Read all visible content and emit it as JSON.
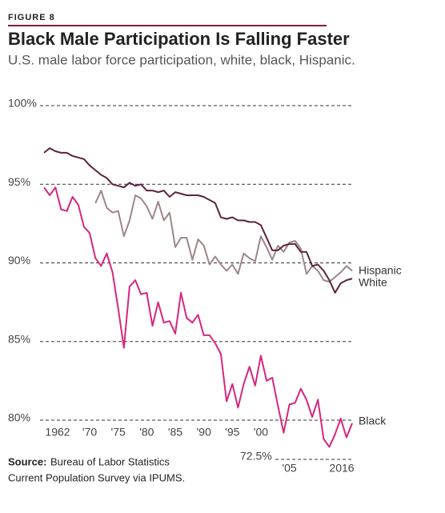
{
  "chart_data": {
    "type": "line",
    "label": "FIGURE 8",
    "title": "Black Male Participation Is Falling Faster",
    "subtitle": "U.S. male labor force participation, white, black, Hispanic.",
    "source_label": "Source:",
    "source": [
      "Bureau of Labor Statistics",
      "Current Population Survey via IPUMS."
    ],
    "axis_break_label": "72.5%",
    "x": [
      1962,
      1963,
      1964,
      1965,
      1966,
      1967,
      1968,
      1969,
      1970,
      1971,
      1972,
      1973,
      1974,
      1975,
      1976,
      1977,
      1978,
      1979,
      1980,
      1981,
      1982,
      1983,
      1984,
      1985,
      1986,
      1987,
      1988,
      1989,
      1990,
      1991,
      1992,
      1993,
      1994,
      1995,
      1996,
      1997,
      1998,
      1999,
      2000,
      2001,
      2002,
      2003,
      2004,
      2005,
      2006,
      2007,
      2008,
      2009,
      2010,
      2011,
      2012,
      2013,
      2014,
      2015,
      2016
    ],
    "xlim": [
      1962,
      2016
    ],
    "xticks": [
      {
        "value": 1962,
        "label": "1962"
      },
      {
        "value": 1970,
        "label": "'70"
      },
      {
        "value": 1975,
        "label": "'75"
      },
      {
        "value": 1980,
        "label": "'80"
      },
      {
        "value": 1985,
        "label": "'85"
      },
      {
        "value": 1990,
        "label": "'90"
      },
      {
        "value": 1995,
        "label": "'95"
      },
      {
        "value": 2000,
        "label": "'00"
      },
      {
        "value": 2005,
        "label": "'05"
      },
      {
        "value": 2016,
        "label": "2016"
      }
    ],
    "ylim": [
      80,
      100
    ],
    "yticks": [
      {
        "value": 100,
        "label": "100%"
      },
      {
        "value": 95,
        "label": "95%"
      },
      {
        "value": 90,
        "label": "90%"
      },
      {
        "value": 85,
        "label": "85%"
      },
      {
        "value": 80,
        "label": "80%"
      }
    ],
    "grid": true,
    "series": [
      {
        "name": "Hispanic",
        "color": "#9c8689",
        "values": [
          null,
          null,
          null,
          null,
          null,
          null,
          null,
          null,
          null,
          93.8,
          94.6,
          93.5,
          93.2,
          93.3,
          91.7,
          92.7,
          94.3,
          94.1,
          93.6,
          92.8,
          93.9,
          92.7,
          93.2,
          91.0,
          91.6,
          91.6,
          90.2,
          91.5,
          91.1,
          89.9,
          90.4,
          89.9,
          89.5,
          89.9,
          89.3,
          90.6,
          90.3,
          90.1,
          91.7,
          91.0,
          90.2,
          91.1,
          90.7,
          91.3,
          91.4,
          90.9,
          89.3,
          89.8,
          89.5,
          88.9,
          88.8,
          89.1,
          89.4,
          89.8,
          89.5
        ]
      },
      {
        "name": "White",
        "color": "#5c2340",
        "values": [
          97.0,
          97.3,
          97.1,
          97.0,
          97.0,
          96.8,
          96.7,
          96.6,
          96.2,
          95.9,
          95.6,
          95.4,
          95.0,
          94.9,
          94.8,
          95.1,
          94.9,
          95.0,
          94.6,
          94.6,
          94.5,
          94.6,
          94.2,
          94.5,
          94.4,
          94.3,
          94.3,
          94.3,
          94.2,
          94.0,
          93.8,
          92.9,
          92.8,
          92.9,
          92.7,
          92.7,
          92.6,
          92.6,
          92.4,
          91.6,
          90.8,
          90.8,
          91.1,
          91.2,
          91.2,
          90.7,
          90.7,
          89.8,
          89.9,
          89.5,
          88.9,
          88.1,
          88.7,
          88.9,
          89.0
        ]
      },
      {
        "name": "Black",
        "color": "#d6267f",
        "values": [
          94.8,
          94.3,
          94.8,
          93.4,
          93.3,
          94.2,
          93.7,
          92.3,
          91.9,
          90.3,
          89.8,
          90.6,
          89.4,
          87.1,
          84.6,
          88.5,
          88.9,
          88.0,
          88.1,
          86.0,
          87.5,
          86.2,
          86.3,
          85.5,
          88.1,
          86.5,
          86.2,
          86.7,
          85.4,
          85.4,
          84.9,
          84.2,
          81.2,
          82.3,
          80.8,
          82.3,
          83.4,
          82.2,
          84.1,
          82.5,
          82.7,
          80.9,
          79.2,
          81.0,
          81.1,
          82.0,
          81.3,
          80.2,
          81.3,
          78.8,
          78.3,
          79.1,
          80.1,
          78.9,
          79.8
        ]
      }
    ]
  }
}
